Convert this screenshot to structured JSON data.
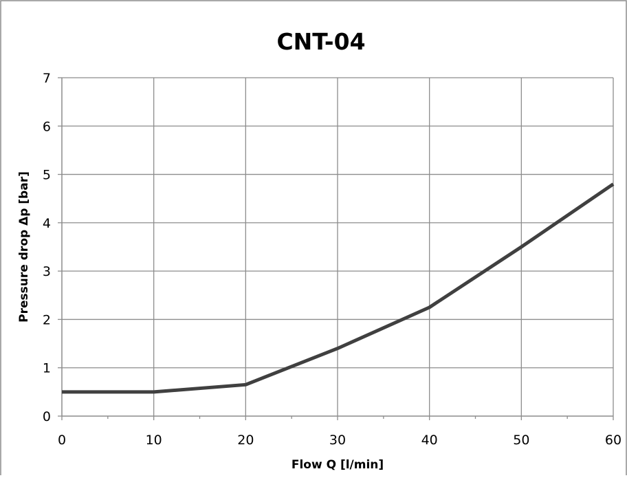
{
  "chart_data": {
    "type": "line",
    "title": "CNT-04",
    "xlabel": "Flow Q [l/min]",
    "ylabel": "Pressure drop Δp [bar]",
    "xlim": [
      0,
      60
    ],
    "ylim": [
      0,
      7
    ],
    "x_ticks": [
      0,
      10,
      20,
      30,
      40,
      50,
      60
    ],
    "y_ticks": [
      0,
      1,
      2,
      3,
      4,
      5,
      6,
      7
    ],
    "grid": true,
    "legend": "none",
    "line_color": "#404040",
    "series": [
      {
        "x": [
          0,
          10,
          20,
          30,
          40,
          50,
          60
        ],
        "y": [
          0.5,
          0.5,
          0.65,
          1.4,
          2.25,
          3.5,
          4.8
        ]
      }
    ]
  }
}
